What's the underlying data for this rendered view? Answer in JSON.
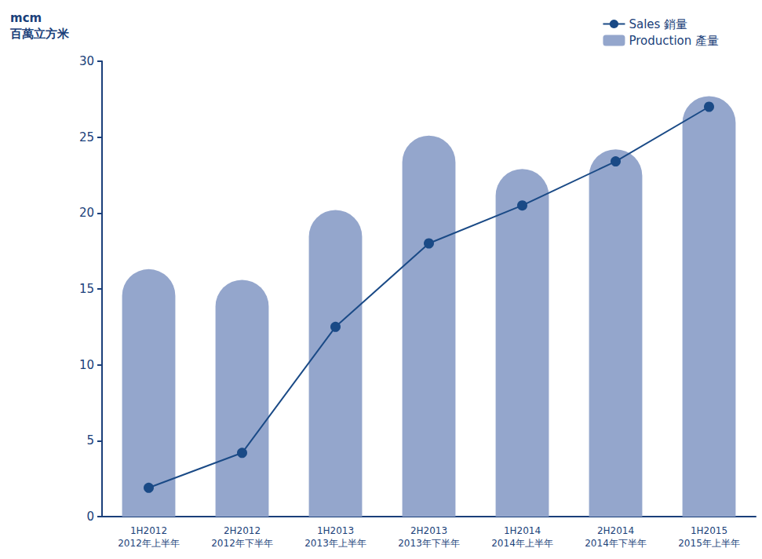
{
  "chart_data": {
    "type": "bar",
    "y_label": "mcm\n百萬立方米",
    "categories": [
      "1H2012\n2012年上半年",
      "2H2012\n2012年下半年",
      "1H2013\n2013年上半年",
      "2H2013\n2013年下半年",
      "1H2014\n2014年上半年",
      "2H2014\n2014年下半年",
      "1H2015\n2015年上半年"
    ],
    "series": [
      {
        "name": "Sales 銷量",
        "type": "line",
        "marker": "circle",
        "color": "#1a4a86",
        "values": [
          1.9,
          4.2,
          12.5,
          18.0,
          20.5,
          23.4,
          27.0
        ]
      },
      {
        "name": "Production 產量",
        "type": "bar",
        "color": "#94a6cc",
        "values": [
          16.3,
          15.6,
          20.2,
          25.1,
          22.9,
          24.2,
          27.7
        ]
      }
    ],
    "ylim": [
      0,
      30
    ],
    "yticks": [
      0,
      5,
      10,
      15,
      20,
      25,
      30
    ],
    "grid": false,
    "legend": "top-right"
  }
}
